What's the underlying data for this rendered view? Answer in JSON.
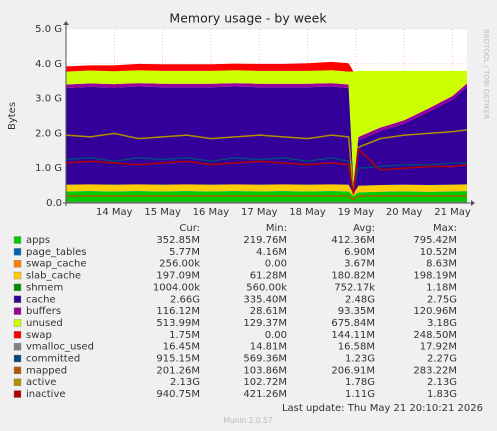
{
  "chart_data": {
    "type": "area",
    "title": "Memory usage - by week",
    "y_label": "Bytes",
    "side_text": "RRDTOOL / TOBI OETIKER",
    "last_update": "Last update: Thu May 21 20:10:21 2026",
    "footer": "Munin 2.0.57",
    "stats_headers": [
      "Cur:",
      "Min:",
      "Avg:",
      "Max:"
    ],
    "grid": true,
    "x": [
      13,
      13.5,
      14,
      14.5,
      15,
      15.5,
      16,
      16.5,
      17,
      17.5,
      18,
      18.5,
      18.85,
      18.95,
      19.05,
      19.5,
      20,
      20.5,
      21,
      21.3
    ],
    "xlim": [
      13,
      21.3
    ],
    "xticks": [
      {
        "value": 14,
        "label": "14 May"
      },
      {
        "value": 15,
        "label": "15 May"
      },
      {
        "value": 16,
        "label": "16 May"
      },
      {
        "value": 17,
        "label": "17 May"
      },
      {
        "value": 18,
        "label": "18 May"
      },
      {
        "value": 19,
        "label": "19 May"
      },
      {
        "value": 20,
        "label": "20 May"
      },
      {
        "value": 21,
        "label": "21 May"
      }
    ],
    "ylim": [
      0,
      5
    ],
    "yticks": [
      {
        "value": 0,
        "label": "0.0"
      },
      {
        "value": 1,
        "label": "1.0 G"
      },
      {
        "value": 2,
        "label": "2.0 G"
      },
      {
        "value": 3,
        "label": "3.0 G"
      },
      {
        "value": 4,
        "label": "4.0 G"
      },
      {
        "value": 5,
        "label": "5.0 G"
      }
    ],
    "series": [
      {
        "name": "apps",
        "color": "#00cc00",
        "style": "stack",
        "stats": [
          "352.85M",
          "219.76M",
          "412.36M",
          "795.42M"
        ],
        "values": [
          0.33,
          0.34,
          0.33,
          0.34,
          0.33,
          0.34,
          0.33,
          0.34,
          0.33,
          0.34,
          0.33,
          0.34,
          0.33,
          0.2,
          0.3,
          0.32,
          0.33,
          0.32,
          0.33,
          0.34
        ]
      },
      {
        "name": "page_tables",
        "color": "#0066b3",
        "style": "stack",
        "stats": [
          "5.77M",
          "4.16M",
          "6.90M",
          "10.52M"
        ],
        "values": [
          0.005,
          0.005,
          0.005,
          0.005,
          0.005,
          0.005,
          0.005,
          0.005,
          0.005,
          0.005,
          0.005,
          0.005,
          0.005,
          0.005,
          0.005,
          0.005,
          0.005,
          0.005,
          0.005,
          0.005
        ]
      },
      {
        "name": "swap_cache",
        "color": "#ff8000",
        "style": "stack",
        "stats": [
          "256.00k",
          "0.00",
          "3.67M",
          "8.63M"
        ],
        "values": [
          0.0003,
          0.0003,
          0.0003,
          0.0003,
          0.0003,
          0.0003,
          0.0003,
          0.0003,
          0.0003,
          0.0003,
          0.0003,
          0.0003,
          0.0003,
          0.0003,
          0.0003,
          0.0003,
          0.0003,
          0.0003,
          0.0003,
          0.0003
        ]
      },
      {
        "name": "slab_cache",
        "color": "#ffcc00",
        "style": "stack",
        "stats": [
          "197.09M",
          "61.28M",
          "180.82M",
          "198.19M"
        ],
        "values": [
          0.19,
          0.19,
          0.19,
          0.19,
          0.19,
          0.19,
          0.19,
          0.19,
          0.19,
          0.19,
          0.19,
          0.19,
          0.19,
          0.06,
          0.19,
          0.19,
          0.19,
          0.19,
          0.19,
          0.19
        ]
      },
      {
        "name": "shmem",
        "color": "#008f00",
        "style": "stack",
        "stats": [
          "1004.00k",
          "560.00k",
          "752.17k",
          "1.18M"
        ],
        "values": [
          0.001,
          0.001,
          0.001,
          0.001,
          0.001,
          0.001,
          0.001,
          0.001,
          0.001,
          0.001,
          0.001,
          0.001,
          0.001,
          0.001,
          0.001,
          0.001,
          0.001,
          0.001,
          0.001,
          0.001
        ]
      },
      {
        "name": "cache",
        "color": "#330099",
        "style": "stack",
        "stats": [
          "2.66G",
          "335.40M",
          "2.48G",
          "2.75G"
        ],
        "values": [
          2.78,
          2.8,
          2.79,
          2.81,
          2.8,
          2.79,
          2.8,
          2.81,
          2.8,
          2.79,
          2.8,
          2.81,
          2.78,
          0.3,
          1.3,
          1.55,
          1.75,
          2.1,
          2.45,
          2.8
        ]
      },
      {
        "name": "buffers",
        "color": "#990099",
        "style": "stack",
        "stats": [
          "116.12M",
          "28.61M",
          "93.35M",
          "120.96M"
        ],
        "values": [
          0.1,
          0.1,
          0.1,
          0.1,
          0.1,
          0.1,
          0.1,
          0.1,
          0.1,
          0.1,
          0.1,
          0.1,
          0.1,
          0.03,
          0.1,
          0.1,
          0.1,
          0.1,
          0.1,
          0.1
        ]
      },
      {
        "name": "unused",
        "color": "#ccff00",
        "style": "stack",
        "stats": [
          "513.99M",
          "129.37M",
          "675.84M",
          "3.18G"
        ],
        "values": [
          0.37,
          0.37,
          0.37,
          0.37,
          0.37,
          0.37,
          0.37,
          0.37,
          0.37,
          0.37,
          0.37,
          0.37,
          0.37,
          3.18,
          1.9,
          1.63,
          1.42,
          1.08,
          0.72,
          0.36
        ]
      },
      {
        "name": "swap",
        "color": "#ff0000",
        "style": "stack",
        "stats": [
          "1.75M",
          "0.00",
          "144.11M",
          "248.50M"
        ],
        "values": [
          0.15,
          0.15,
          0.17,
          0.18,
          0.19,
          0.19,
          0.19,
          0.19,
          0.2,
          0.2,
          0.22,
          0.24,
          0.24,
          0,
          0,
          0,
          0,
          0,
          0,
          0
        ]
      },
      {
        "name": "vmalloc_used",
        "color": "#808080",
        "style": "line",
        "stats": [
          "16.45M",
          "14.81M",
          "16.58M",
          "17.92M"
        ],
        "values": [
          0.016,
          0.016,
          0.016,
          0.016,
          0.016,
          0.016,
          0.016,
          0.016,
          0.016,
          0.016,
          0.016,
          0.016,
          0.016,
          0.016,
          0.016,
          0.016,
          0.016,
          0.016,
          0.016,
          0.016
        ]
      },
      {
        "name": "committed",
        "color": "#00487d",
        "style": "line",
        "stats": [
          "915.15M",
          "569.36M",
          "1.23G",
          "2.27G"
        ],
        "values": [
          1.25,
          1.3,
          1.2,
          1.3,
          1.25,
          1.3,
          1.2,
          1.3,
          1.25,
          1.3,
          1.2,
          1.3,
          1.2,
          0.4,
          1.0,
          1.05,
          1.1,
          1.1,
          1.15,
          1.15
        ]
      },
      {
        "name": "mapped",
        "color": "#b35a00",
        "style": "line",
        "stats": [
          "201.26M",
          "103.86M",
          "206.91M",
          "283.22M"
        ],
        "values": [
          0.2,
          0.2,
          0.2,
          0.2,
          0.2,
          0.2,
          0.2,
          0.2,
          0.2,
          0.2,
          0.2,
          0.2,
          0.2,
          0.1,
          0.2,
          0.2,
          0.2,
          0.2,
          0.2,
          0.2
        ]
      },
      {
        "name": "active",
        "color": "#b38f00",
        "style": "line",
        "stats": [
          "2.13G",
          "102.72M",
          "1.78G",
          "2.13G"
        ],
        "values": [
          1.95,
          1.9,
          2.0,
          1.85,
          1.9,
          1.95,
          1.85,
          1.9,
          1.95,
          1.9,
          1.85,
          1.95,
          1.9,
          0.3,
          1.6,
          1.85,
          1.95,
          2.0,
          2.05,
          2.1
        ]
      },
      {
        "name": "inactive",
        "color": "#b30000",
        "style": "line",
        "stats": [
          "940.75M",
          "421.26M",
          "1.11G",
          "1.83G"
        ],
        "values": [
          1.15,
          1.2,
          1.15,
          1.1,
          1.15,
          1.2,
          1.1,
          1.15,
          1.2,
          1.15,
          1.1,
          1.15,
          1.1,
          0.25,
          1.55,
          0.95,
          1.0,
          1.05,
          1.05,
          1.1
        ]
      }
    ]
  }
}
